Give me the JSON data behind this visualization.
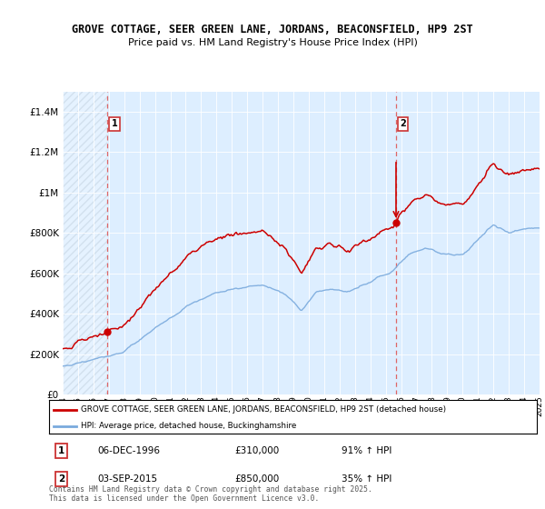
{
  "title1": "GROVE COTTAGE, SEER GREEN LANE, JORDANS, BEACONSFIELD, HP9 2ST",
  "title2": "Price paid vs. HM Land Registry's House Price Index (HPI)",
  "legend_red": "GROVE COTTAGE, SEER GREEN LANE, JORDANS, BEACONSFIELD, HP9 2ST (detached house)",
  "legend_blue": "HPI: Average price, detached house, Buckinghamshire",
  "annotation1_date": "06-DEC-1996",
  "annotation1_price": "£310,000",
  "annotation1_hpi": "91% ↑ HPI",
  "annotation2_date": "03-SEP-2015",
  "annotation2_price": "£850,000",
  "annotation2_hpi": "35% ↑ HPI",
  "footer": "Contains HM Land Registry data © Crown copyright and database right 2025.\nThis data is licensed under the Open Government Licence v3.0.",
  "red_color": "#cc0000",
  "blue_color": "#7aaadd",
  "bg_color": "#ddeeff",
  "grid_color": "#ffffff",
  "dashed_line_color": "#dd6666",
  "ylim": [
    0,
    1500000
  ],
  "yticks": [
    0,
    200000,
    400000,
    600000,
    800000,
    1000000,
    1200000,
    1400000
  ],
  "x_start_year": 1994,
  "x_end_year": 2025,
  "sale1_year": 1996.92,
  "sale1_price": 310000,
  "sale2_year": 2015.67,
  "sale2_price": 850000
}
